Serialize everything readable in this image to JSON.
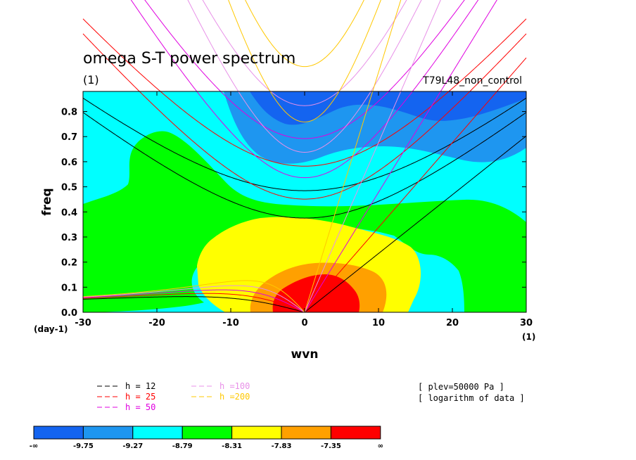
{
  "chart_data": {
    "type": "heatmap",
    "title": "omega S-T power spectrum",
    "subtitle_left": "(1)",
    "subtitle_right": "T79L48_non_control",
    "xlabel": "wvn",
    "ylabel": "freq",
    "x_unit_label": "(1)",
    "y_unit_label": "(day-1)",
    "xlim": [
      -30,
      30
    ],
    "ylim": [
      0,
      0.88
    ],
    "x_ticks": [
      -30,
      -20,
      -10,
      0,
      10,
      20,
      30
    ],
    "x_tick_labels": [
      "-30",
      "-20",
      "-10",
      "0",
      "10",
      "20",
      "30"
    ],
    "y_ticks": [
      0,
      0.1,
      0.2,
      0.3,
      0.4,
      0.5,
      0.6,
      0.7,
      0.8
    ],
    "y_tick_labels": [
      "0.0",
      "0.1",
      "0.2",
      "0.3",
      "0.4",
      "0.5",
      "0.6",
      "0.7",
      "0.8"
    ],
    "levels": [
      {
        "label": "-∞",
        "color": "#1464f0"
      },
      {
        "label": "-9.75",
        "color": "#1e96f0"
      },
      {
        "label": "-9.27",
        "color": "#00ffff"
      },
      {
        "label": "-8.79",
        "color": "#00ff00"
      },
      {
        "label": "-8.31",
        "color": "#ffff00"
      },
      {
        "label": "-7.83",
        "color": "#ffa000"
      },
      {
        "label": "-7.35",
        "color": "#ff0000"
      },
      {
        "label": "∞",
        "color": ""
      }
    ],
    "dispersion_curves": [
      {
        "label": "h = 12",
        "equivalent_depth": 12,
        "color": "#000000"
      },
      {
        "label": "h = 25",
        "equivalent_depth": 25,
        "color": "#ff0000"
      },
      {
        "label": "h = 50",
        "equivalent_depth": 50,
        "color": "#e000e0"
      },
      {
        "label": "h =100",
        "equivalent_depth": 100,
        "color": "#e890e8"
      },
      {
        "label": "h =200",
        "equivalent_depth": 200,
        "color": "#ffc800"
      }
    ],
    "annotations": [
      "[ plev=50000 Pa ]",
      "[ logarithm of data ]"
    ]
  }
}
